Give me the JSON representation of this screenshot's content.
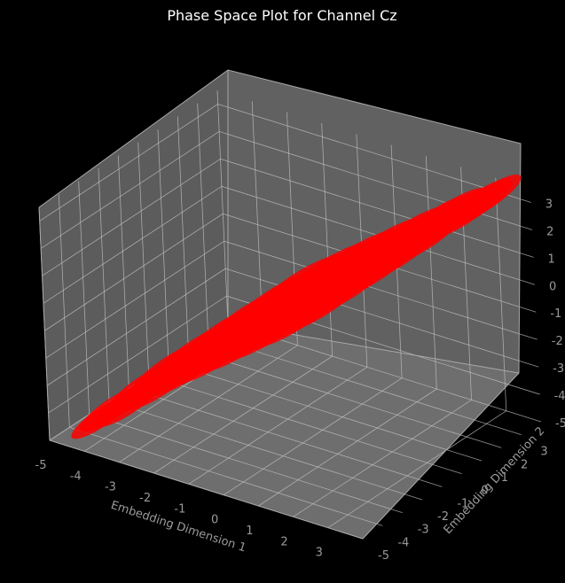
{
  "chart_data": {
    "type": "scatter",
    "projection": "3d",
    "title": "Phase Space Plot for Channel Cz",
    "xlabel": "Embedding Dimension 1",
    "ylabel": "Embedding Dimension 2",
    "zlabel": "",
    "xlim": [
      -5,
      4
    ],
    "ylim": [
      -5,
      4
    ],
    "zlim": [
      -5,
      3.5
    ],
    "xticks": [
      "-5",
      "-4",
      "-3",
      "-2",
      "-1",
      "0",
      "1",
      "2",
      "3"
    ],
    "yticks": [
      "-5",
      "-4",
      "-3",
      "-2",
      "-1",
      "0",
      "1",
      "2",
      "3"
    ],
    "zticks": [
      "-5",
      "-4",
      "-3",
      "-2",
      "-1",
      "0",
      "1",
      "2",
      "3"
    ],
    "grid": true,
    "series": [
      {
        "color": "#ff0000",
        "marker": "dot",
        "points": [
          [
            -4.0,
            -4.1,
            -4.2
          ],
          [
            -3.8,
            -3.9,
            -3.9
          ],
          [
            -3.5,
            -3.6,
            -3.7
          ],
          [
            -3.2,
            -3.3,
            -3.2
          ],
          [
            -3.0,
            -2.9,
            -3.1
          ],
          [
            -2.7,
            -2.8,
            -2.6
          ],
          [
            -2.5,
            -2.4,
            -2.5
          ],
          [
            -2.2,
            -2.3,
            -2.1
          ],
          [
            -2.0,
            -1.9,
            -2.0
          ],
          [
            -1.7,
            -1.8,
            -1.6
          ],
          [
            -1.5,
            -1.4,
            -1.5
          ],
          [
            -1.2,
            -1.3,
            -1.1
          ],
          [
            -1.0,
            -0.9,
            -1.0
          ],
          [
            -0.7,
            -0.8,
            -0.6
          ],
          [
            -0.5,
            -0.4,
            -0.5
          ],
          [
            -0.2,
            -0.3,
            -0.1
          ],
          [
            0.0,
            0.1,
            0.0
          ],
          [
            0.3,
            0.2,
            0.4
          ],
          [
            0.5,
            0.6,
            0.5
          ],
          [
            0.8,
            0.7,
            0.9
          ],
          [
            1.0,
            1.1,
            1.0
          ],
          [
            1.3,
            1.2,
            1.4
          ],
          [
            1.5,
            1.6,
            1.5
          ],
          [
            1.8,
            1.7,
            1.9
          ],
          [
            2.0,
            2.1,
            2.0
          ],
          [
            2.3,
            2.2,
            2.4
          ],
          [
            2.5,
            2.6,
            2.6
          ],
          [
            2.8,
            2.7,
            2.8
          ],
          [
            3.0,
            3.1,
            3.0
          ],
          [
            3.2,
            3.3,
            3.2
          ]
        ]
      }
    ]
  }
}
